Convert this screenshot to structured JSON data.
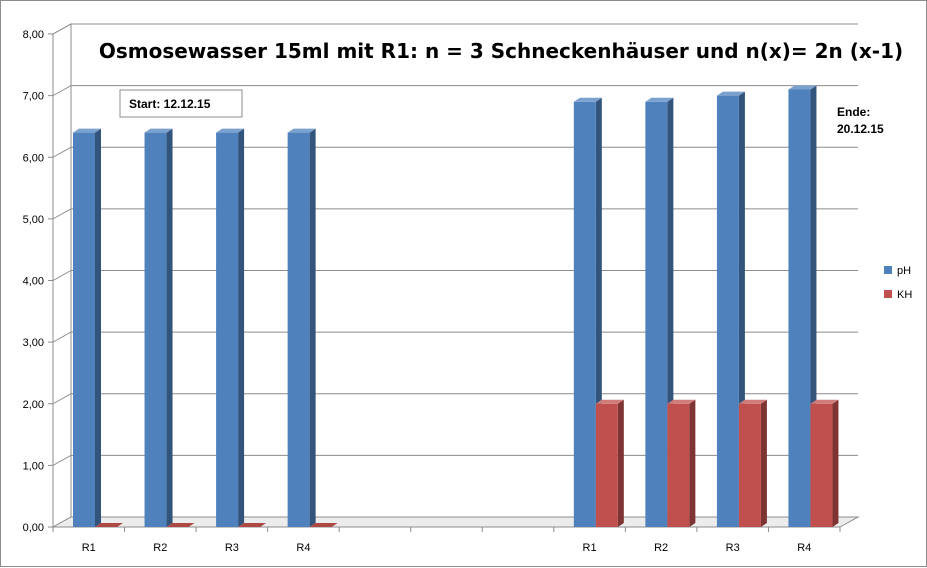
{
  "chart_data": {
    "type": "bar",
    "title": "Osmosewasser 15ml  mit R1: n = 3 Schneckenhäuser und  n(x)= 2n (x-1)",
    "xlabel": "",
    "ylabel": "",
    "categories": [
      "R1",
      "R2",
      "R3",
      "R4",
      "",
      "",
      "",
      "R1",
      "R2",
      "R3",
      "R4"
    ],
    "series": [
      {
        "name": "pH",
        "color": "#4F81BD",
        "values": [
          6.4,
          6.4,
          6.4,
          6.4,
          null,
          null,
          null,
          6.9,
          6.9,
          7.0,
          7.1
        ]
      },
      {
        "name": "KH",
        "color": "#C0504D",
        "values": [
          0,
          0,
          0,
          0,
          null,
          null,
          null,
          2.0,
          2.0,
          2.0,
          2.0
        ]
      }
    ],
    "ylim": [
      0,
      8
    ],
    "yticks": [
      "0,00",
      "1,00",
      "2,00",
      "3,00",
      "4,00",
      "5,00",
      "6,00",
      "7,00",
      "8,00"
    ],
    "grid": true,
    "legend_position": "right",
    "annotations": [
      {
        "id": "start",
        "text": "Start: 12.12.15",
        "boxed": true
      },
      {
        "id": "ende",
        "lines": [
          "Ende:",
          "20.12.15"
        ],
        "boxed": false
      }
    ]
  }
}
